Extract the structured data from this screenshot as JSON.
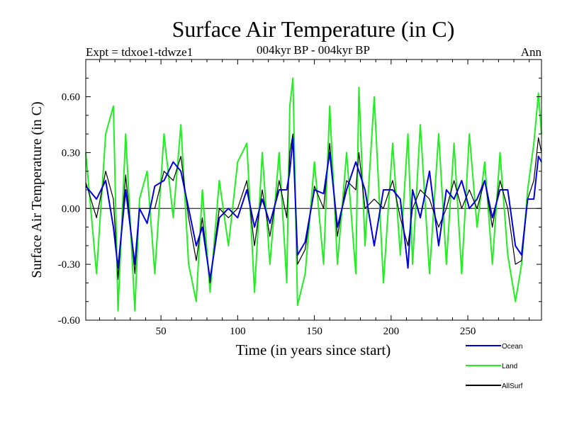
{
  "chart_data": {
    "type": "line",
    "title": "Surface Air Temperature (in C)",
    "subtitle": "004kyr BP - 004kyr BP",
    "experiment": "Expt = tdxoe1-tdwze1",
    "season": "Ann",
    "xlabel": "Time (in years since start)",
    "ylabel": "Surface Air Temperature (in C)",
    "xlim": [
      1,
      298
    ],
    "ylim": [
      -0.6,
      0.8
    ],
    "xticks": [
      50,
      100,
      150,
      200,
      250
    ],
    "yticks": [
      -0.6,
      -0.3,
      0.0,
      0.3,
      0.6
    ],
    "ytick_labels": [
      "-0.60",
      "-0.30",
      "0.00",
      "0.30",
      "0.60"
    ],
    "zero_line": true,
    "grid": false,
    "legend_position": "bottom-right",
    "x": [
      1,
      8,
      14,
      19,
      22,
      27,
      33,
      36,
      41,
      46,
      52,
      58,
      63,
      68,
      73,
      77,
      82,
      88,
      94,
      100,
      106,
      111,
      116,
      121,
      127,
      132,
      134,
      136,
      139,
      144,
      150,
      156,
      160,
      165,
      171,
      177,
      179,
      183,
      189,
      195,
      201,
      206,
      211,
      214,
      219,
      225,
      231,
      236,
      241,
      246,
      251,
      256,
      261,
      266,
      271,
      276,
      281,
      285,
      289,
      293,
      296,
      298
    ],
    "series": [
      {
        "name": "Ocean",
        "color": "#0000dd",
        "values": [
          0.12,
          0.05,
          0.15,
          -0.1,
          -0.32,
          0.1,
          -0.3,
          0.0,
          -0.08,
          0.12,
          0.15,
          0.25,
          0.2,
          0.0,
          -0.2,
          -0.1,
          -0.38,
          -0.05,
          0.0,
          -0.05,
          0.1,
          -0.1,
          0.05,
          -0.08,
          0.1,
          0.1,
          0.2,
          0.38,
          -0.25,
          -0.18,
          0.1,
          0.08,
          0.3,
          -0.1,
          0.1,
          0.25,
          0.2,
          0.1,
          -0.2,
          0.1,
          0.1,
          0.05,
          -0.32,
          0.1,
          -0.05,
          0.2,
          -0.2,
          0.1,
          0.05,
          0.15,
          0.0,
          0.05,
          0.15,
          -0.05,
          0.1,
          0.1,
          -0.2,
          -0.25,
          0.05,
          0.05,
          0.28,
          0.25
        ]
      },
      {
        "name": "Land",
        "color": "#22ee22",
        "values": [
          0.3,
          -0.35,
          0.4,
          0.55,
          -0.55,
          0.4,
          -0.55,
          0.05,
          0.2,
          -0.35,
          0.4,
          -0.05,
          0.45,
          -0.3,
          -0.5,
          0.1,
          -0.45,
          0.15,
          -0.2,
          0.25,
          0.35,
          -0.45,
          0.3,
          -0.3,
          0.3,
          -0.4,
          0.55,
          0.7,
          -0.52,
          -0.35,
          0.25,
          -0.3,
          0.55,
          -0.3,
          0.3,
          -0.35,
          0.65,
          -0.2,
          0.6,
          -0.4,
          0.35,
          -0.25,
          0.4,
          -0.3,
          0.45,
          -0.35,
          0.4,
          -0.3,
          0.35,
          -0.35,
          0.4,
          -0.1,
          0.25,
          -0.3,
          0.3,
          -0.25,
          -0.5,
          -0.3,
          0.1,
          0.35,
          0.62,
          0.4
        ]
      },
      {
        "name": "AllSurf",
        "color": "#000000",
        "values": [
          0.14,
          -0.05,
          0.2,
          0.05,
          -0.38,
          0.18,
          -0.35,
          0.0,
          0.0,
          0.0,
          0.2,
          0.15,
          0.28,
          -0.05,
          -0.28,
          -0.05,
          -0.4,
          0.0,
          -0.05,
          0.0,
          0.15,
          -0.2,
          0.1,
          -0.15,
          0.15,
          -0.05,
          0.3,
          0.4,
          -0.3,
          -0.22,
          0.12,
          0.0,
          0.35,
          -0.15,
          0.15,
          0.1,
          0.3,
          0.0,
          0.05,
          0.0,
          0.15,
          -0.05,
          -0.2,
          0.0,
          0.1,
          0.05,
          -0.1,
          0.0,
          0.15,
          0.0,
          0.1,
          0.0,
          0.15,
          -0.1,
          0.15,
          0.0,
          -0.3,
          -0.28,
          0.05,
          0.15,
          0.38,
          0.3
        ]
      }
    ]
  }
}
